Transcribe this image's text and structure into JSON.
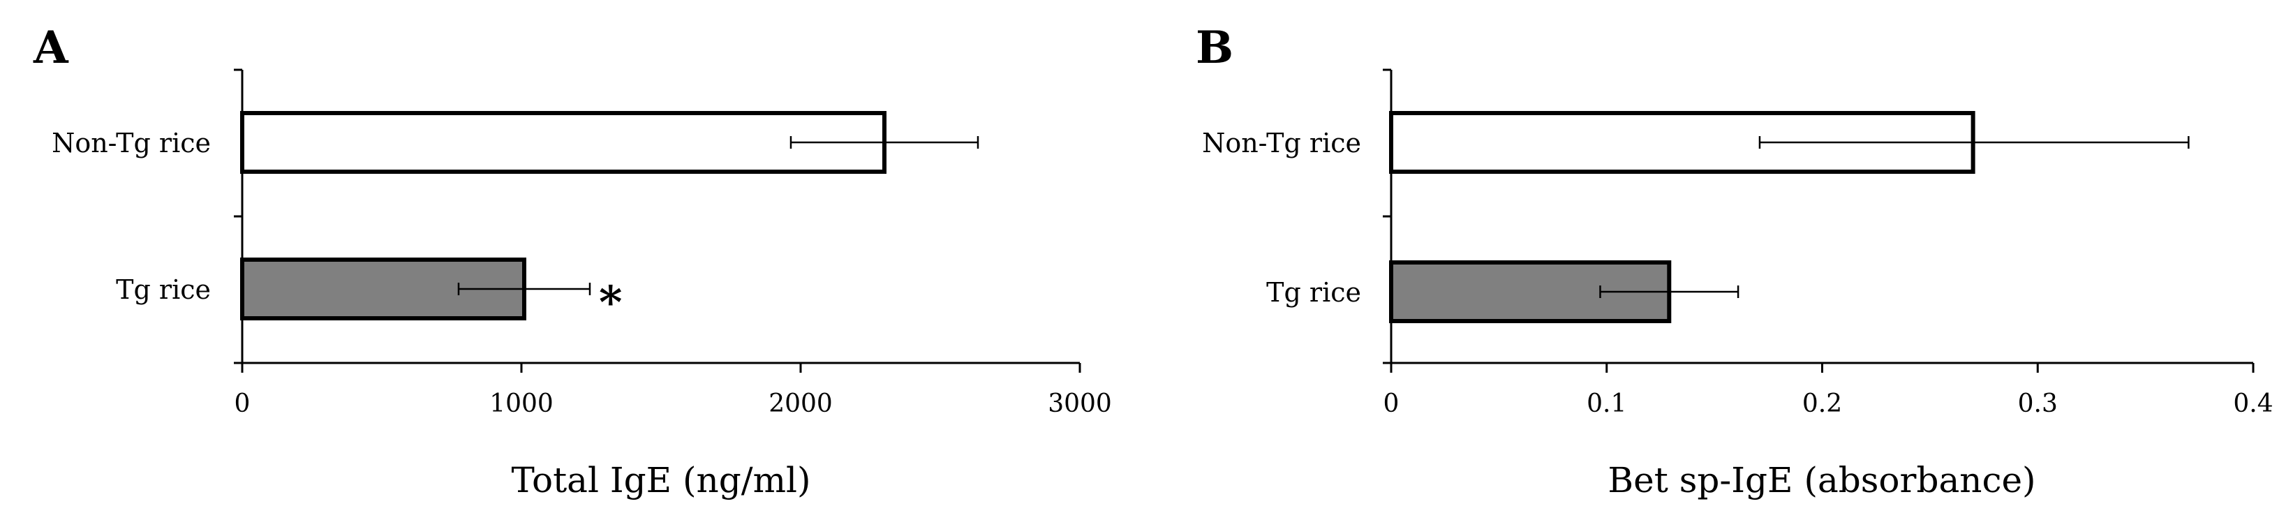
{
  "chart_data": [
    {
      "panel": "A",
      "type": "bar",
      "orientation": "horizontal",
      "categories": [
        "Non-Tg rice",
        "Tg rice"
      ],
      "values": [
        2300,
        1010
      ],
      "error": [
        [
          335,
          335
        ],
        [
          235,
          235
        ]
      ],
      "bar_colors": [
        "#ffffff",
        "#808080"
      ],
      "xlabel": "Total IgE (ng/ml)",
      "xlim": [
        0,
        3000
      ],
      "xticks": [
        0,
        1000,
        2000,
        3000
      ],
      "xtick_labels": [
        "0",
        "1000",
        "2000",
        "3000"
      ],
      "annotations": [
        {
          "category": "Tg rice",
          "text": "*"
        }
      ],
      "grid": false,
      "legend": "none"
    },
    {
      "panel": "B",
      "type": "bar",
      "orientation": "horizontal",
      "categories": [
        "Non-Tg rice",
        "Tg rice"
      ],
      "values": [
        0.27,
        0.129
      ],
      "error": [
        [
          0.099,
          0.1
        ],
        [
          0.032,
          0.032
        ]
      ],
      "bar_colors": [
        "#ffffff",
        "#808080"
      ],
      "xlabel": "Bet sp-IgE (absorbance)",
      "xlim": [
        0,
        0.4
      ],
      "xticks": [
        0,
        0.1,
        0.2,
        0.3,
        0.4
      ],
      "xtick_labels": [
        "0",
        "0.1",
        "0.2",
        "0.3",
        "0.4"
      ],
      "annotations": [],
      "grid": false,
      "legend": "none"
    }
  ]
}
